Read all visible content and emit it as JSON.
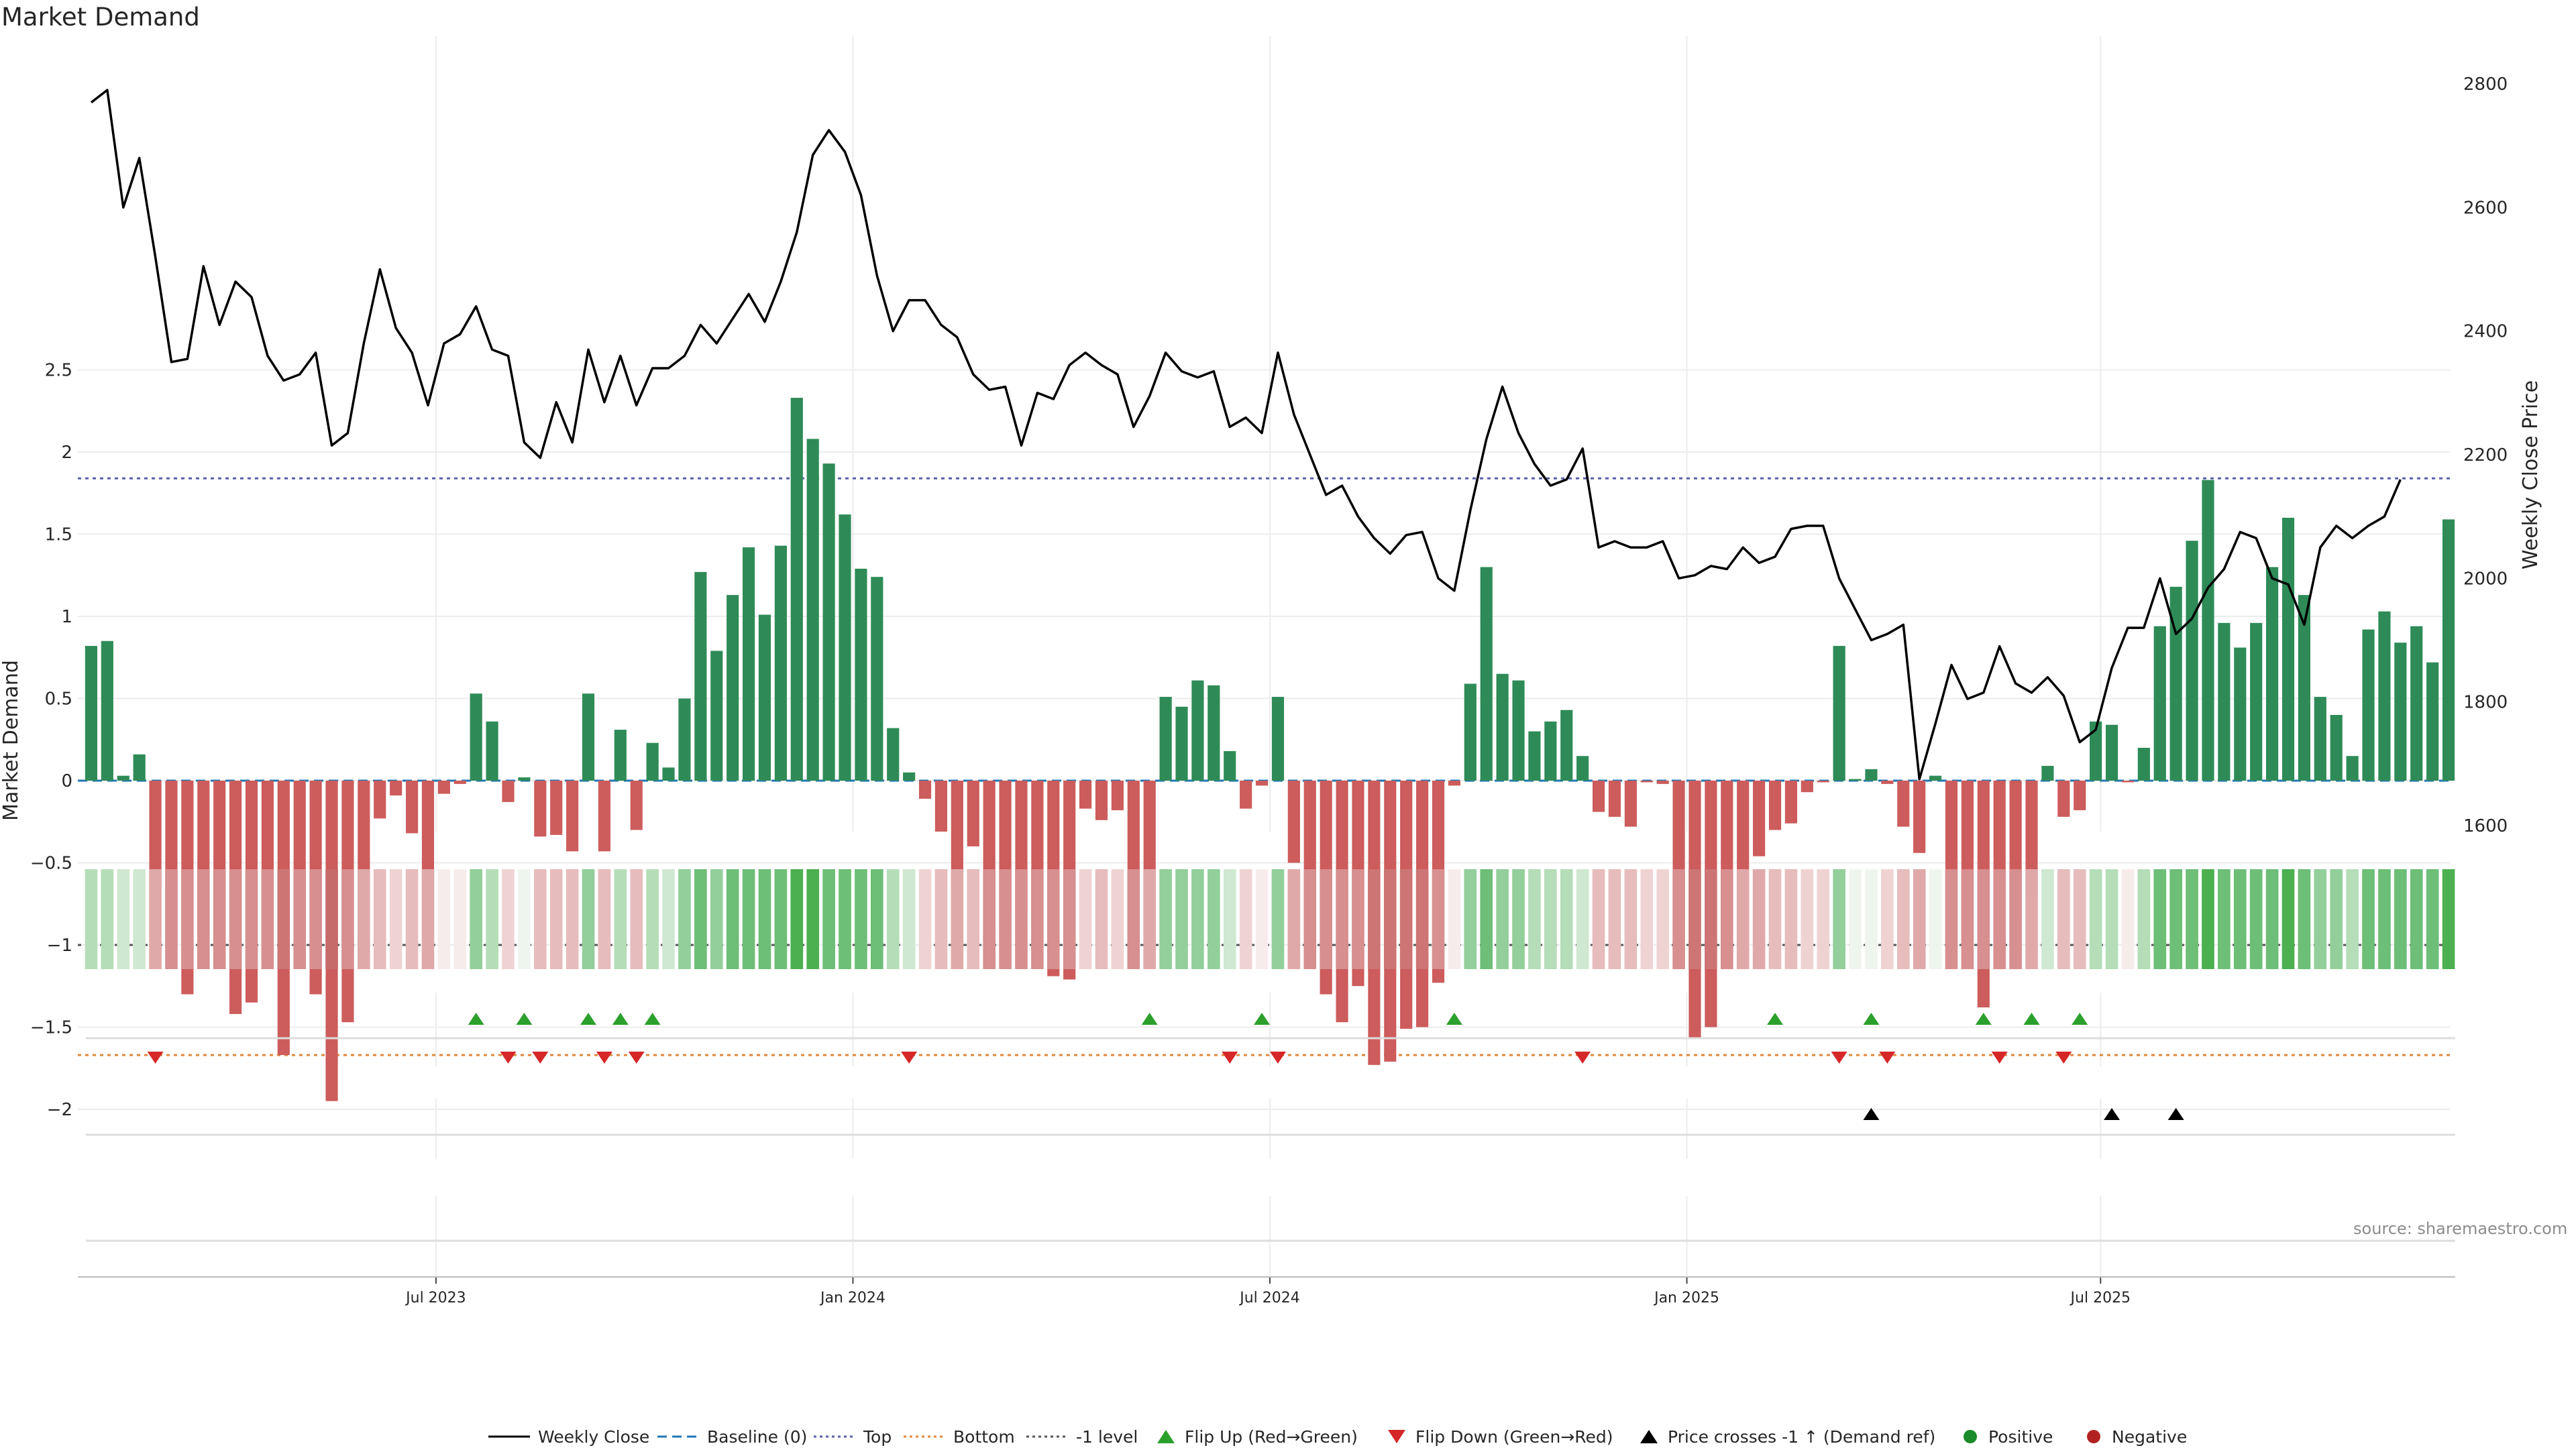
{
  "title": "Market Demand",
  "source": "source: sharemaestro.com",
  "colors": {
    "positive": "#2e8b57",
    "negative": "#cd5c5c",
    "line": "#000000",
    "top": "#5b5fa8",
    "bottom": "#e0883b",
    "minus_one": "#555555",
    "baseline": "#1f77b4",
    "flip_up": "#2ca02c",
    "flip_down": "#d62728",
    "cross": "#000000"
  },
  "chart_data": {
    "type": "bar",
    "title": "Market Demand",
    "ylabel": "Market Demand",
    "y2label": "Weekly Close Price",
    "ylim": [
      -2.2,
      2.55
    ],
    "y2lim": [
      1550,
      2850
    ],
    "yticks": [
      "2.5",
      "2",
      "1.5",
      "1",
      "0.5",
      "0",
      "−0.5",
      "−1",
      "−1.5",
      "−2"
    ],
    "ytick_values": [
      2.5,
      2,
      1.5,
      1,
      0.5,
      0,
      -0.5,
      -1,
      -1.5,
      -2
    ],
    "y2ticks": [
      "2800",
      "2600",
      "2400",
      "2200",
      "2000",
      "1800",
      "1600"
    ],
    "y2tick_values": [
      2800,
      2600,
      2400,
      2200,
      2000,
      1800,
      1600
    ],
    "xticks": [
      "Jul 2023",
      "Jan 2024",
      "Jul 2024",
      "Jan 2025",
      "Jul 2025"
    ],
    "xtick_weeks": [
      21.5,
      47.5,
      73.5,
      99.5,
      125.3
    ],
    "reference_lines": {
      "top": 1.84,
      "bottom": -1.67,
      "minus_one": -1.0,
      "baseline": 0
    },
    "demand": [
      0.82,
      0.85,
      0.03,
      0.16,
      -0.66,
      -1.04,
      -1.3,
      -0.98,
      -1.13,
      -1.42,
      -1.35,
      -1.09,
      -1.67,
      -0.89,
      -1.3,
      -1.95,
      -1.47,
      -0.79,
      -0.23,
      -0.09,
      -0.32,
      -0.59,
      -0.08,
      -0.02,
      0.53,
      0.36,
      -0.13,
      0.02,
      -0.34,
      -0.33,
      -0.43,
      0.53,
      -0.43,
      0.31,
      -0.3,
      0.23,
      0.08,
      0.5,
      1.27,
      0.79,
      1.13,
      1.42,
      1.01,
      1.43,
      2.33,
      2.08,
      1.93,
      1.62,
      1.29,
      1.24,
      0.32,
      0.05,
      -0.11,
      -0.31,
      -0.63,
      -0.4,
      -0.99,
      -0.92,
      -0.82,
      -0.88,
      -1.19,
      -1.21,
      -0.17,
      -0.24,
      -0.18,
      -0.85,
      -0.56,
      0.51,
      0.45,
      0.61,
      0.58,
      0.18,
      -0.17,
      -0.03,
      0.51,
      -0.5,
      -1.03,
      -1.3,
      -1.47,
      -1.25,
      -1.73,
      -1.71,
      -1.51,
      -1.5,
      -1.23,
      -0.03,
      0.59,
      1.3,
      0.65,
      0.61,
      0.3,
      0.36,
      0.43,
      0.15,
      -0.19,
      -0.22,
      -0.28,
      -0.01,
      -0.02,
      -0.84,
      -1.57,
      -1.5,
      -0.82,
      -0.68,
      -0.46,
      -0.3,
      -0.26,
      -0.07,
      -0.01,
      0.82,
      0.01,
      0.07,
      -0.02,
      -0.28,
      -0.44,
      0.03,
      -1.0,
      -0.93,
      -1.38,
      -0.97,
      -0.84,
      -0.68,
      0.09,
      -0.22,
      -0.18,
      0.36,
      0.34,
      -0.01,
      0.2,
      0.94,
      1.18,
      1.46,
      1.83,
      0.96,
      0.81,
      0.96,
      1.3,
      1.6,
      1.13,
      0.51,
      0.4,
      0.15,
      0.92,
      1.03,
      0.84,
      0.94,
      0.72,
      1.59
    ],
    "weekly_close": [
      2770,
      2790,
      2600,
      2680,
      2520,
      2350,
      2355,
      2505,
      2410,
      2480,
      2455,
      2360,
      2320,
      2330,
      2365,
      2215,
      2235,
      2380,
      2500,
      2405,
      2365,
      2280,
      2380,
      2395,
      2440,
      2370,
      2360,
      2220,
      2195,
      2285,
      2220,
      2370,
      2285,
      2360,
      2280,
      2340,
      2340,
      2360,
      2410,
      2380,
      2420,
      2460,
      2415,
      2480,
      2560,
      2685,
      2725,
      2690,
      2620,
      2490,
      2400,
      2450,
      2450,
      2410,
      2390,
      2330,
      2305,
      2310,
      2215,
      2300,
      2290,
      2345,
      2365,
      2345,
      2330,
      2245,
      2295,
      2365,
      2335,
      2325,
      2335,
      2245,
      2260,
      2235,
      2365,
      2265,
      2200,
      2135,
      2150,
      2100,
      2065,
      2040,
      2070,
      2075,
      2000,
      1980,
      2110,
      2225,
      2310,
      2235,
      2185,
      2150,
      2160,
      2210,
      2050,
      2060,
      2050,
      2050,
      2060,
      2000,
      2005,
      2020,
      2015,
      2050,
      2025,
      2035,
      2080,
      2085,
      2085,
      2000,
      1950,
      1900,
      1910,
      1925,
      1675,
      1765,
      1860,
      1805,
      1815,
      1890,
      1830,
      1815,
      1840,
      1810,
      1735,
      1755,
      1855,
      1920,
      1920,
      2000,
      1910,
      1935,
      1985,
      2015,
      2075,
      2065,
      2000,
      1990,
      1925,
      2050,
      2085,
      2065,
      2085,
      2100,
      2160
    ],
    "strength_shades": [
      3,
      3,
      4,
      4,
      9,
      10,
      10,
      10,
      10,
      10,
      10,
      10,
      11,
      10,
      10,
      12,
      10,
      9,
      8,
      7,
      8,
      9,
      6,
      6,
      2,
      3,
      7,
      5,
      8,
      8,
      8,
      2,
      8,
      3,
      8,
      3,
      4,
      2,
      1,
      2,
      1,
      1,
      1,
      1,
      0,
      0,
      1,
      1,
      1,
      1,
      3,
      4,
      7,
      8,
      9,
      8,
      10,
      10,
      10,
      10,
      10,
      10,
      7,
      8,
      7,
      10,
      9,
      2,
      2,
      2,
      2,
      4,
      7,
      6,
      2,
      9,
      10,
      10,
      10,
      10,
      11,
      11,
      11,
      11,
      10,
      6,
      2,
      1,
      2,
      2,
      3,
      3,
      3,
      4,
      8,
      8,
      8,
      7,
      7,
      10,
      11,
      11,
      10,
      9,
      9,
      8,
      8,
      7,
      7,
      2,
      5,
      5,
      7,
      8,
      9,
      5,
      10,
      10,
      10,
      10,
      10,
      9,
      4,
      8,
      8,
      3,
      3,
      6,
      3,
      1,
      1,
      1,
      0,
      1,
      1,
      1,
      1,
      0,
      1,
      2,
      2,
      3,
      1,
      1,
      1,
      1,
      1,
      0
    ],
    "flip_up_weeks": [
      24,
      27,
      31,
      33,
      35,
      66,
      73,
      85,
      105,
      111,
      118,
      121,
      124
    ],
    "flip_down_weeks": [
      4,
      26,
      28,
      32,
      34,
      51,
      71,
      74,
      93,
      109,
      112,
      119,
      123
    ],
    "price_cross_weeks": [
      111,
      126,
      130
    ]
  },
  "legend": [
    {
      "key": "weekly_close",
      "label": "Weekly Close"
    },
    {
      "key": "baseline",
      "label": "Baseline (0)"
    },
    {
      "key": "top",
      "label": "Top"
    },
    {
      "key": "bottom",
      "label": "Bottom"
    },
    {
      "key": "minus_one",
      "label": "-1 level"
    },
    {
      "key": "flip_up",
      "label": "Flip Up (Red→Green)"
    },
    {
      "key": "flip_down",
      "label": "Flip Down (Green→Red)"
    },
    {
      "key": "price_cross",
      "label": "Price crosses -1 ↑ (Demand ref)"
    },
    {
      "key": "positive",
      "label": "Positive"
    },
    {
      "key": "negative",
      "label": "Negative"
    }
  ]
}
